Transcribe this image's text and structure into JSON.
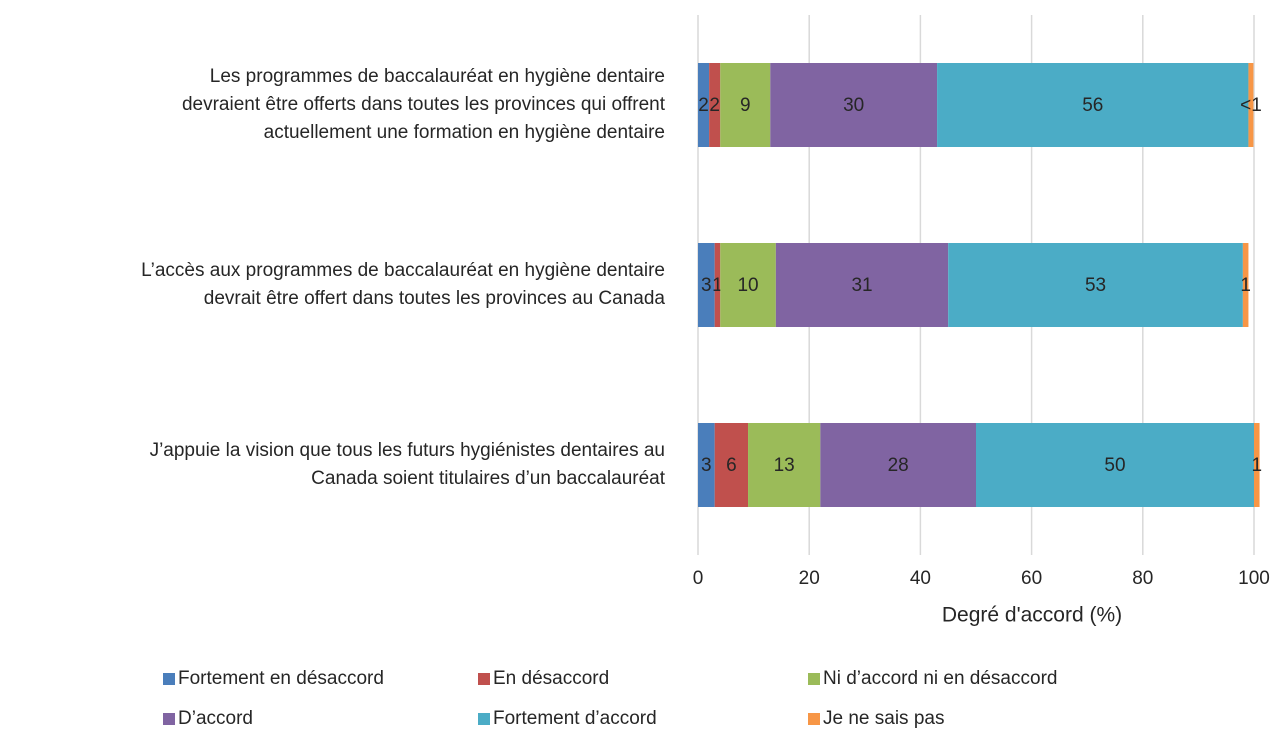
{
  "chart_data": {
    "type": "stacked_barh",
    "categories": [
      [
        "Les programmes de baccalauréat en hygiène dentaire",
        "devraient être offerts dans toutes les provinces qui offrent",
        "actuellement une formation en hygiène dentaire"
      ],
      [
        "L’accès aux programmes de baccalauréat en hygiène dentaire",
        "devrait être offert dans toutes les provinces au Canada"
      ],
      [
        "J’appuie la vision que tous les futurs hygiénistes dentaires au",
        "Canada soient titulaires d’un baccalauréat"
      ]
    ],
    "series": [
      {
        "name": "Fortement en désaccord",
        "color": "#4a7ebb",
        "values": [
          2,
          3,
          3
        ]
      },
      {
        "name": "En désaccord",
        "color": "#c0504d",
        "values": [
          2,
          1,
          6
        ]
      },
      {
        "name": "Ni d’accord ni en désaccord",
        "color": "#9bbb59",
        "values": [
          9,
          10,
          13
        ]
      },
      {
        "name": "D’accord",
        "color": "#8064a2",
        "values": [
          30,
          31,
          28
        ]
      },
      {
        "name": "Fortement d’accord",
        "color": "#4bacc6",
        "values": [
          56,
          53,
          50
        ]
      },
      {
        "name": "Je ne sais pas",
        "color": "#f79646",
        "values": [
          0.9,
          1,
          1
        ],
        "value_labels": [
          "<1",
          "1",
          "1"
        ]
      }
    ],
    "xlabel": "Degré d'accord (%)",
    "xlim": [
      0,
      100
    ],
    "xticks": [
      0,
      20,
      40,
      60,
      80,
      100
    ],
    "grid": true
  }
}
